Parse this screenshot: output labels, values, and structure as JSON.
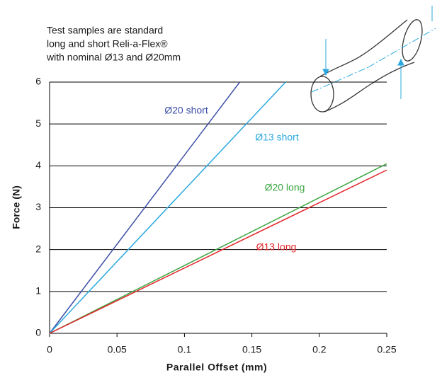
{
  "chart_data": {
    "type": "line",
    "annotation": [
      "Test samples are standard",
      "long and short Reli-a-Flex®",
      "with nominal Ø13 and Ø20mm"
    ],
    "x_label": "Parallel Offset (mm)",
    "y_label": "Force (N)",
    "series": [
      {
        "name": "Ø20 short",
        "color": "#3c4fa6",
        "x": [
          0,
          0.141
        ],
        "values": [
          0,
          6
        ]
      },
      {
        "name": "Ø13 short",
        "color": "#2aa8df",
        "x": [
          0,
          0.175
        ],
        "values": [
          0,
          6
        ]
      },
      {
        "name": "Ø20 long",
        "color": "#3aa640",
        "x": [
          0,
          0.25
        ],
        "values": [
          0,
          4.05
        ]
      },
      {
        "name": "Ø13 long",
        "color": "#e2262b",
        "x": [
          0,
          0.25
        ],
        "values": [
          0,
          3.9
        ]
      }
    ],
    "xlim": [
      0,
      0.25
    ],
    "xticks": [
      0,
      0.05,
      0.1,
      0.15,
      0.2,
      0.25
    ],
    "ylim": [
      0,
      6
    ],
    "yticks": [
      0,
      1,
      2,
      3,
      4,
      5,
      6
    ],
    "grid": true
  }
}
